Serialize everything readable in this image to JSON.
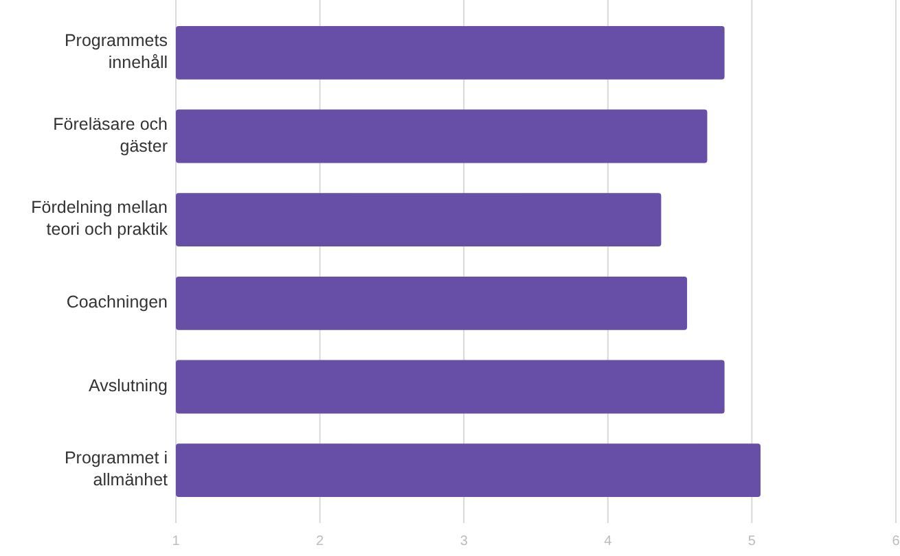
{
  "chart_data": {
    "type": "bar",
    "orientation": "horizontal",
    "categories": [
      "Programmets innehåll",
      "Föreläsare och gäster",
      "Fördelning mellan teori och praktik",
      "Coachningen",
      "Avslutning",
      "Programmet i allmänhet"
    ],
    "values": [
      4.81,
      4.69,
      4.37,
      4.55,
      4.81,
      5.06
    ],
    "color": "#674ea7",
    "xlim": [
      1,
      6
    ],
    "xticks": [
      1,
      2,
      3,
      4,
      5,
      6
    ],
    "grid": "x"
  }
}
